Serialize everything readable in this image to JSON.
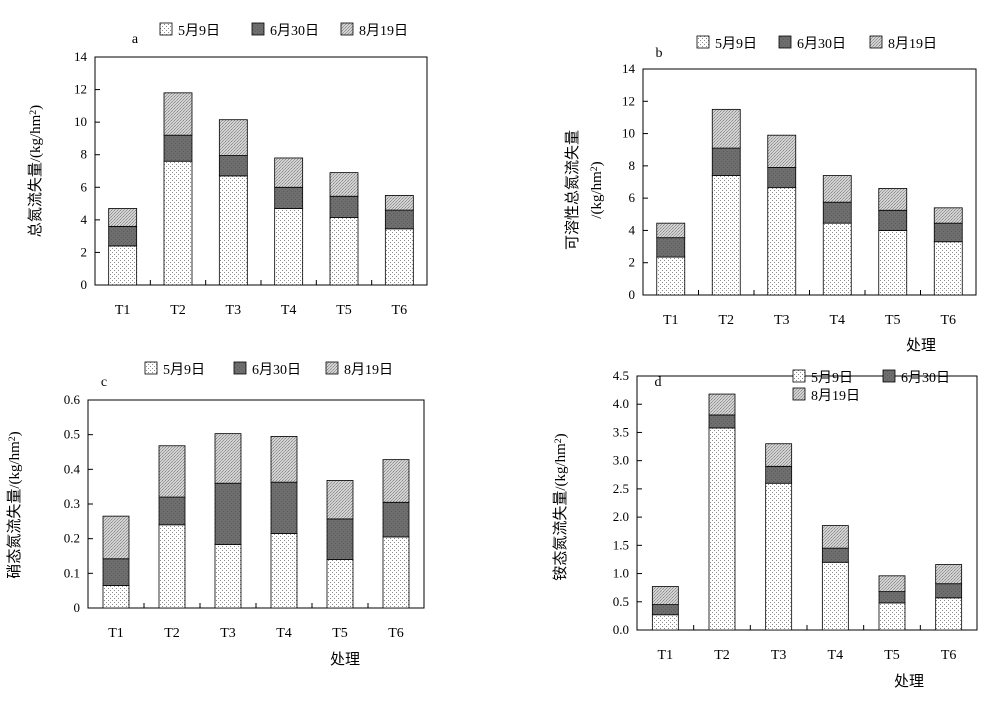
{
  "chart_data": [
    {
      "type": "bar",
      "stacked": true,
      "panel_label": "a",
      "ylabel": "总氮流失量/(kg/hm²)",
      "xlabel": "",
      "categories": [
        "T1",
        "T2",
        "T3",
        "T4",
        "T5",
        "T6"
      ],
      "ylim": [
        0,
        14
      ],
      "yticks": [
        "0",
        "2",
        "4",
        "6",
        "8",
        "10",
        "12",
        "14"
      ],
      "legend_position": "top",
      "series": [
        {
          "name": "5月9日",
          "values": [
            2.4,
            7.6,
            6.7,
            4.7,
            4.15,
            3.45
          ]
        },
        {
          "name": "6月30日",
          "values": [
            1.2,
            1.6,
            1.25,
            1.3,
            1.3,
            1.15
          ]
        },
        {
          "name": "8月19日",
          "values": [
            1.1,
            2.6,
            2.2,
            1.8,
            1.45,
            0.9
          ]
        }
      ]
    },
    {
      "type": "bar",
      "stacked": true,
      "panel_label": "b",
      "ylabel": "可溶性总氮流失量",
      "ylabel_line2": "/(kg/hm²)",
      "xlabel": "处理",
      "categories": [
        "T1",
        "T2",
        "T3",
        "T4",
        "T5",
        "T6"
      ],
      "ylim": [
        0,
        14
      ],
      "yticks": [
        "0",
        "2",
        "4",
        "6",
        "8",
        "10",
        "12",
        "14"
      ],
      "legend_position": "top",
      "series": [
        {
          "name": "5月9日",
          "values": [
            2.35,
            7.4,
            6.65,
            4.45,
            4.0,
            3.3
          ]
        },
        {
          "name": "6月30日",
          "values": [
            1.2,
            1.7,
            1.25,
            1.3,
            1.25,
            1.15
          ]
        },
        {
          "name": "8月19日",
          "values": [
            0.9,
            2.4,
            2.0,
            1.65,
            1.35,
            0.95
          ]
        }
      ]
    },
    {
      "type": "bar",
      "stacked": true,
      "panel_label": "c",
      "ylabel": "硝态氮流失量/(kg/hm²)",
      "xlabel": "处理",
      "categories": [
        "T1",
        "T2",
        "T3",
        "T4",
        "T5",
        "T6"
      ],
      "ylim": [
        0,
        0.6
      ],
      "yticks": [
        "0",
        "0.1",
        "0.2",
        "0.3",
        "0.4",
        "0.5",
        "0.6"
      ],
      "legend_position": "top",
      "series": [
        {
          "name": "5月9日",
          "values": [
            0.065,
            0.24,
            0.183,
            0.215,
            0.14,
            0.205
          ]
        },
        {
          "name": "6月30日",
          "values": [
            0.077,
            0.08,
            0.177,
            0.148,
            0.117,
            0.1
          ]
        },
        {
          "name": "8月19日",
          "values": [
            0.123,
            0.148,
            0.143,
            0.132,
            0.111,
            0.123
          ]
        }
      ]
    },
    {
      "type": "bar",
      "stacked": true,
      "panel_label": "d",
      "ylabel": "铵态氮流失量/(kg/hm²)",
      "xlabel": "处理",
      "categories": [
        "T1",
        "T2",
        "T3",
        "T4",
        "T5",
        "T6"
      ],
      "ylim": [
        0,
        4.5
      ],
      "yticks": [
        "0.0",
        "0.5",
        "1.0",
        "1.5",
        "2.0",
        "2.5",
        "3.0",
        "3.5",
        "4.0",
        "4.5"
      ],
      "legend_position": "top-right",
      "series": [
        {
          "name": "5月9日",
          "values": [
            0.27,
            3.58,
            2.6,
            1.2,
            0.48,
            0.57
          ]
        },
        {
          "name": "6月30日",
          "values": [
            0.18,
            0.23,
            0.3,
            0.25,
            0.2,
            0.25
          ]
        },
        {
          "name": "8月19日",
          "values": [
            0.32,
            0.37,
            0.4,
            0.4,
            0.28,
            0.34
          ]
        }
      ]
    }
  ]
}
